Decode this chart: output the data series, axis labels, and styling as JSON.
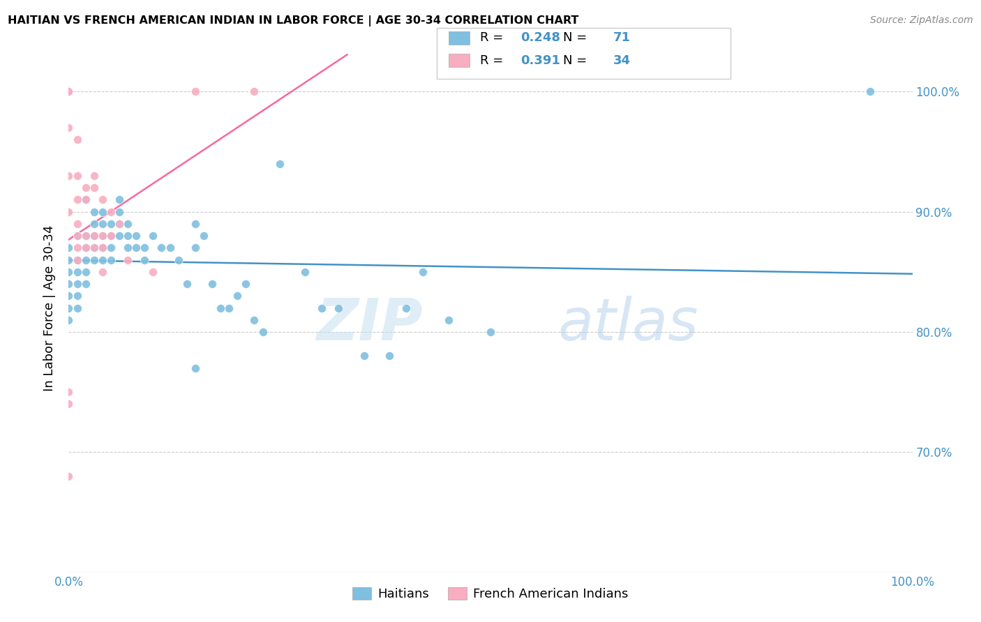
{
  "title": "HAITIAN VS FRENCH AMERICAN INDIAN IN LABOR FORCE | AGE 30-34 CORRELATION CHART",
  "source": "Source: ZipAtlas.com",
  "ylabel": "In Labor Force | Age 30-34",
  "y_tick_labels": [
    "70.0%",
    "80.0%",
    "90.0%",
    "100.0%"
  ],
  "y_tick_values": [
    0.7,
    0.8,
    0.9,
    1.0
  ],
  "xlim": [
    0.0,
    1.0
  ],
  "ylim": [
    0.6,
    1.04
  ],
  "legend_r1": "0.248",
  "legend_n1": "71",
  "legend_r2": "0.391",
  "legend_n2": "34",
  "color_blue": "#7fbfdf",
  "color_pink": "#f8adc0",
  "color_blue_line": "#4292c6",
  "color_pink_line": "#f768a1",
  "color_r_value": "#4292c6",
  "color_axis_label": "#4292c6",
  "watermark_zip": "ZIP",
  "watermark_atlas": "atlas",
  "blue_points_x": [
    0.0,
    0.0,
    0.0,
    0.0,
    0.0,
    0.0,
    0.0,
    0.01,
    0.01,
    0.01,
    0.01,
    0.01,
    0.01,
    0.02,
    0.02,
    0.02,
    0.02,
    0.02,
    0.02,
    0.03,
    0.03,
    0.03,
    0.03,
    0.03,
    0.04,
    0.04,
    0.04,
    0.04,
    0.04,
    0.05,
    0.05,
    0.05,
    0.05,
    0.06,
    0.06,
    0.06,
    0.06,
    0.07,
    0.07,
    0.07,
    0.08,
    0.08,
    0.09,
    0.09,
    0.1,
    0.11,
    0.12,
    0.13,
    0.14,
    0.15,
    0.15,
    0.15,
    0.16,
    0.17,
    0.18,
    0.19,
    0.2,
    0.21,
    0.22,
    0.23,
    0.25,
    0.28,
    0.3,
    0.32,
    0.35,
    0.38,
    0.4,
    0.42,
    0.45,
    0.5,
    0.95
  ],
  "blue_points_y": [
    0.87,
    0.86,
    0.85,
    0.84,
    0.83,
    0.82,
    0.81,
    0.88,
    0.86,
    0.85,
    0.84,
    0.83,
    0.82,
    0.91,
    0.88,
    0.87,
    0.86,
    0.85,
    0.84,
    0.9,
    0.89,
    0.88,
    0.87,
    0.86,
    0.9,
    0.89,
    0.88,
    0.87,
    0.86,
    0.89,
    0.88,
    0.87,
    0.86,
    0.91,
    0.9,
    0.89,
    0.88,
    0.89,
    0.88,
    0.87,
    0.88,
    0.87,
    0.87,
    0.86,
    0.88,
    0.87,
    0.87,
    0.86,
    0.84,
    0.89,
    0.87,
    0.77,
    0.88,
    0.84,
    0.82,
    0.82,
    0.83,
    0.84,
    0.81,
    0.8,
    0.94,
    0.85,
    0.82,
    0.82,
    0.78,
    0.78,
    0.82,
    0.85,
    0.81,
    0.8,
    1.0
  ],
  "pink_points_x": [
    0.0,
    0.0,
    0.0,
    0.0,
    0.0,
    0.0,
    0.0,
    0.0,
    0.01,
    0.01,
    0.01,
    0.01,
    0.01,
    0.01,
    0.01,
    0.02,
    0.02,
    0.02,
    0.02,
    0.03,
    0.03,
    0.03,
    0.03,
    0.04,
    0.04,
    0.04,
    0.04,
    0.05,
    0.05,
    0.06,
    0.07,
    0.1,
    0.15,
    0.22
  ],
  "pink_points_y": [
    1.0,
    1.0,
    0.97,
    0.93,
    0.9,
    0.75,
    0.74,
    0.68,
    0.96,
    0.93,
    0.91,
    0.89,
    0.88,
    0.87,
    0.86,
    0.92,
    0.91,
    0.88,
    0.87,
    0.93,
    0.92,
    0.88,
    0.87,
    0.91,
    0.88,
    0.87,
    0.85,
    0.9,
    0.88,
    0.89,
    0.86,
    0.85,
    1.0,
    1.0
  ]
}
